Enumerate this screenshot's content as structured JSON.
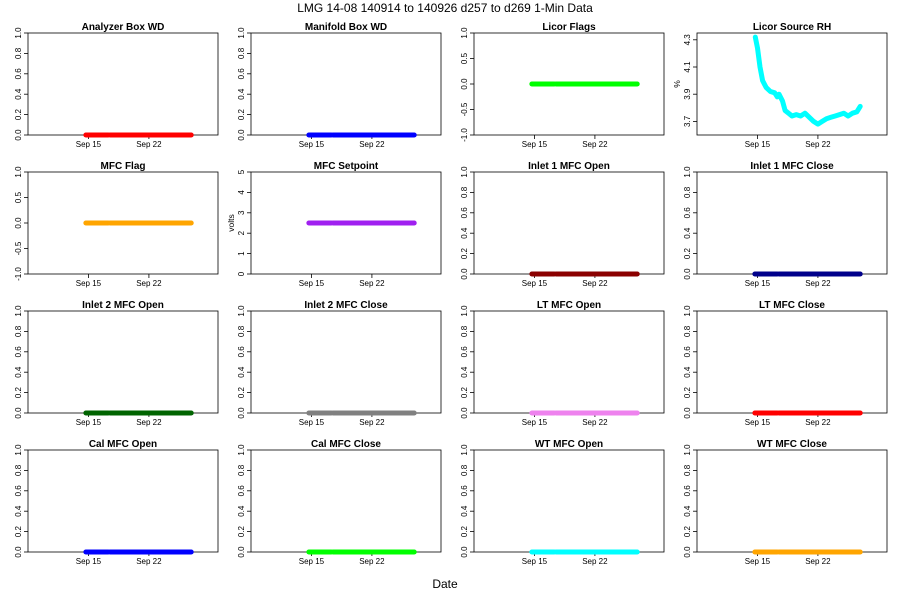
{
  "figure": {
    "title": "LMG  14-08    140914 to 140926    d257 to d269   1-Min Data",
    "xlabel": "Date"
  },
  "chart_data": [
    {
      "type": "scatter",
      "title": "Analyzer Box WD",
      "ylabel": "",
      "color": "#ff0000",
      "xlim": [
        8,
        30
      ],
      "ylim": [
        0,
        1
      ],
      "yticks": [
        "0.0",
        "0.2",
        "0.4",
        "0.6",
        "0.8",
        "1.0"
      ],
      "ytick_values": [
        0,
        0.2,
        0.4,
        0.6,
        0.8,
        1.0
      ],
      "xticks": [
        "Sep 15",
        "Sep 22"
      ],
      "xtick_values": [
        15,
        22
      ],
      "x": [
        14.7,
        26.9
      ],
      "y": [
        0,
        0
      ],
      "gaps": [
        [
          17.3,
          17.5
        ]
      ]
    },
    {
      "type": "scatter",
      "title": "Manifold Box WD",
      "ylabel": "",
      "color": "#0000ff",
      "xlim": [
        8,
        30
      ],
      "ylim": [
        0,
        1
      ],
      "yticks": [
        "0.0",
        "0.2",
        "0.4",
        "0.6",
        "0.8",
        "1.0"
      ],
      "ytick_values": [
        0,
        0.2,
        0.4,
        0.6,
        0.8,
        1.0
      ],
      "xticks": [
        "Sep 15",
        "Sep 22"
      ],
      "xtick_values": [
        15,
        22
      ],
      "x": [
        14.7,
        26.9
      ],
      "y": [
        0,
        0
      ],
      "gaps": [
        [
          17.3,
          17.5
        ]
      ]
    },
    {
      "type": "scatter",
      "title": "Licor Flags",
      "ylabel": "",
      "color": "#00ff00",
      "xlim": [
        8,
        30
      ],
      "ylim": [
        -1,
        1
      ],
      "yticks": [
        "-1.0",
        "-0.5",
        "0.0",
        "0.5",
        "1.0"
      ],
      "ytick_values": [
        -1,
        -0.5,
        0,
        0.5,
        1
      ],
      "xticks": [
        "Sep 15",
        "Sep 22"
      ],
      "xtick_values": [
        15,
        22
      ],
      "x": [
        14.7,
        26.9
      ],
      "y": [
        0,
        0
      ],
      "gaps": [
        [
          17.3,
          17.5
        ]
      ]
    },
    {
      "type": "line",
      "title": "Licor Source RH",
      "ylabel": "%",
      "color": "#00ffff",
      "xlim": [
        8,
        30
      ],
      "ylim": [
        3.6,
        4.35
      ],
      "yticks": [
        "3.7",
        "3.9",
        "4.1",
        "4.3"
      ],
      "ytick_values": [
        3.7,
        3.9,
        4.1,
        4.3
      ],
      "xticks": [
        "Sep 15",
        "Sep 22"
      ],
      "xtick_values": [
        15,
        22
      ],
      "x": [
        14.75,
        15.0,
        15.3,
        15.6,
        16.0,
        16.5,
        17.0,
        17.3,
        17.5,
        17.9,
        18.2,
        18.6,
        19.0,
        19.5,
        20.0,
        20.5,
        21.0,
        21.5,
        22.0,
        22.5,
        23.0,
        23.5,
        24.0,
        24.5,
        25.0,
        25.5,
        26.0,
        26.5,
        26.9
      ],
      "y": [
        4.32,
        4.24,
        4.1,
        4.0,
        3.95,
        3.92,
        3.91,
        3.88,
        3.9,
        3.85,
        3.78,
        3.76,
        3.74,
        3.75,
        3.74,
        3.76,
        3.73,
        3.7,
        3.68,
        3.7,
        3.72,
        3.73,
        3.74,
        3.75,
        3.76,
        3.74,
        3.76,
        3.77,
        3.81
      ]
    },
    {
      "type": "scatter",
      "title": "MFC Flag",
      "ylabel": "",
      "color": "#ffa500",
      "xlim": [
        8,
        30
      ],
      "ylim": [
        -1,
        1
      ],
      "yticks": [
        "-1.0",
        "-0.5",
        "0.0",
        "0.5",
        "1.0"
      ],
      "ytick_values": [
        -1,
        -0.5,
        0,
        0.5,
        1
      ],
      "xticks": [
        "Sep 15",
        "Sep 22"
      ],
      "xtick_values": [
        15,
        22
      ],
      "x": [
        14.7,
        26.9
      ],
      "y": [
        0,
        0
      ],
      "gaps": [
        [
          17.3,
          17.5
        ]
      ]
    },
    {
      "type": "scatter",
      "title": "MFC Setpoint",
      "ylabel": "volts",
      "color": "#a020f0",
      "xlim": [
        8,
        30
      ],
      "ylim": [
        0,
        5
      ],
      "yticks": [
        "0",
        "1",
        "2",
        "3",
        "4",
        "5"
      ],
      "ytick_values": [
        0,
        1,
        2,
        3,
        4,
        5
      ],
      "xticks": [
        "Sep 15",
        "Sep 22"
      ],
      "xtick_values": [
        15,
        22
      ],
      "x": [
        14.7,
        26.9
      ],
      "y": [
        2.5,
        2.5
      ],
      "gaps": [
        [
          17.3,
          17.5
        ]
      ]
    },
    {
      "type": "scatter",
      "title": "Inlet 1 MFC Open",
      "ylabel": "",
      "color": "#8b0000",
      "xlim": [
        8,
        30
      ],
      "ylim": [
        0,
        1
      ],
      "yticks": [
        "0.0",
        "0.2",
        "0.4",
        "0.6",
        "0.8",
        "1.0"
      ],
      "ytick_values": [
        0,
        0.2,
        0.4,
        0.6,
        0.8,
        1.0
      ],
      "xticks": [
        "Sep 15",
        "Sep 22"
      ],
      "xtick_values": [
        15,
        22
      ],
      "x": [
        14.7,
        26.9
      ],
      "y": [
        0,
        0
      ],
      "gaps": [
        [
          17.3,
          17.5
        ]
      ]
    },
    {
      "type": "scatter",
      "title": "Inlet 1 MFC Close",
      "ylabel": "",
      "color": "#00008b",
      "xlim": [
        8,
        30
      ],
      "ylim": [
        0,
        1
      ],
      "yticks": [
        "0.0",
        "0.2",
        "0.4",
        "0.6",
        "0.8",
        "1.0"
      ],
      "ytick_values": [
        0,
        0.2,
        0.4,
        0.6,
        0.8,
        1.0
      ],
      "xticks": [
        "Sep 15",
        "Sep 22"
      ],
      "xtick_values": [
        15,
        22
      ],
      "x": [
        14.7,
        26.9
      ],
      "y": [
        0,
        0
      ],
      "gaps": [
        [
          17.3,
          17.5
        ]
      ]
    },
    {
      "type": "scatter",
      "title": "Inlet 2 MFC Open",
      "ylabel": "",
      "color": "#006400",
      "xlim": [
        8,
        30
      ],
      "ylim": [
        0,
        1
      ],
      "yticks": [
        "0.0",
        "0.2",
        "0.4",
        "0.6",
        "0.8",
        "1.0"
      ],
      "ytick_values": [
        0,
        0.2,
        0.4,
        0.6,
        0.8,
        1.0
      ],
      "xticks": [
        "Sep 15",
        "Sep 22"
      ],
      "xtick_values": [
        15,
        22
      ],
      "x": [
        14.7,
        26.9
      ],
      "y": [
        0,
        0
      ],
      "gaps": [
        [
          17.3,
          17.5
        ]
      ]
    },
    {
      "type": "scatter",
      "title": "Inlet 2 MFC Close",
      "ylabel": "",
      "color": "#808080",
      "xlim": [
        8,
        30
      ],
      "ylim": [
        0,
        1
      ],
      "yticks": [
        "0.0",
        "0.2",
        "0.4",
        "0.6",
        "0.8",
        "1.0"
      ],
      "ytick_values": [
        0,
        0.2,
        0.4,
        0.6,
        0.8,
        1.0
      ],
      "xticks": [
        "Sep 15",
        "Sep 22"
      ],
      "xtick_values": [
        15,
        22
      ],
      "x": [
        14.7,
        26.9
      ],
      "y": [
        0,
        0
      ],
      "gaps": [
        [
          17.3,
          17.5
        ]
      ]
    },
    {
      "type": "scatter",
      "title": "LT MFC Open",
      "ylabel": "",
      "color": "#ee82ee",
      "xlim": [
        8,
        30
      ],
      "ylim": [
        0,
        1
      ],
      "yticks": [
        "0.0",
        "0.2",
        "0.4",
        "0.6",
        "0.8",
        "1.0"
      ],
      "ytick_values": [
        0,
        0.2,
        0.4,
        0.6,
        0.8,
        1.0
      ],
      "xticks": [
        "Sep 15",
        "Sep 22"
      ],
      "xtick_values": [
        15,
        22
      ],
      "x": [
        14.7,
        26.9
      ],
      "y": [
        0,
        0
      ],
      "gaps": [
        [
          17.3,
          17.5
        ]
      ]
    },
    {
      "type": "scatter",
      "title": "LT MFC Close",
      "ylabel": "",
      "color": "#ff0000",
      "xlim": [
        8,
        30
      ],
      "ylim": [
        0,
        1
      ],
      "yticks": [
        "0.0",
        "0.2",
        "0.4",
        "0.6",
        "0.8",
        "1.0"
      ],
      "ytick_values": [
        0,
        0.2,
        0.4,
        0.6,
        0.8,
        1.0
      ],
      "xticks": [
        "Sep 15",
        "Sep 22"
      ],
      "xtick_values": [
        15,
        22
      ],
      "x": [
        14.7,
        26.9
      ],
      "y": [
        0,
        0
      ],
      "gaps": [
        [
          17.3,
          17.5
        ]
      ]
    },
    {
      "type": "scatter",
      "title": "Cal MFC Open",
      "ylabel": "",
      "color": "#0000ff",
      "xlim": [
        8,
        30
      ],
      "ylim": [
        0,
        1
      ],
      "yticks": [
        "0.0",
        "0.2",
        "0.4",
        "0.6",
        "0.8",
        "1.0"
      ],
      "ytick_values": [
        0,
        0.2,
        0.4,
        0.6,
        0.8,
        1.0
      ],
      "xticks": [
        "Sep 15",
        "Sep 22"
      ],
      "xtick_values": [
        15,
        22
      ],
      "x": [
        14.7,
        26.9
      ],
      "y": [
        0,
        0
      ],
      "gaps": [
        [
          17.3,
          17.5
        ]
      ]
    },
    {
      "type": "scatter",
      "title": "Cal MFC Close",
      "ylabel": "",
      "color": "#00ff00",
      "xlim": [
        8,
        30
      ],
      "ylim": [
        0,
        1
      ],
      "yticks": [
        "0.0",
        "0.2",
        "0.4",
        "0.6",
        "0.8",
        "1.0"
      ],
      "ytick_values": [
        0,
        0.2,
        0.4,
        0.6,
        0.8,
        1.0
      ],
      "xticks": [
        "Sep 15",
        "Sep 22"
      ],
      "xtick_values": [
        15,
        22
      ],
      "x": [
        14.7,
        26.9
      ],
      "y": [
        0,
        0
      ],
      "gaps": [
        [
          17.3,
          17.5
        ]
      ]
    },
    {
      "type": "scatter",
      "title": "WT MFC Open",
      "ylabel": "",
      "color": "#00ffff",
      "xlim": [
        8,
        30
      ],
      "ylim": [
        0,
        1
      ],
      "yticks": [
        "0.0",
        "0.2",
        "0.4",
        "0.6",
        "0.8",
        "1.0"
      ],
      "ytick_values": [
        0,
        0.2,
        0.4,
        0.6,
        0.8,
        1.0
      ],
      "xticks": [
        "Sep 15",
        "Sep 22"
      ],
      "xtick_values": [
        15,
        22
      ],
      "x": [
        14.7,
        26.9
      ],
      "y": [
        0,
        0
      ],
      "gaps": [
        [
          17.3,
          17.5
        ]
      ]
    },
    {
      "type": "scatter",
      "title": "WT MFC Close",
      "ylabel": "",
      "color": "#ffa500",
      "xlim": [
        8,
        30
      ],
      "ylim": [
        0,
        1
      ],
      "yticks": [
        "0.0",
        "0.2",
        "0.4",
        "0.6",
        "0.8",
        "1.0"
      ],
      "ytick_values": [
        0,
        0.2,
        0.4,
        0.6,
        0.8,
        1.0
      ],
      "xticks": [
        "Sep 15",
        "Sep 22"
      ],
      "xtick_values": [
        15,
        22
      ],
      "x": [
        14.7,
        26.9
      ],
      "y": [
        0,
        0
      ],
      "gaps": [
        [
          17.3,
          17.5
        ]
      ]
    }
  ]
}
